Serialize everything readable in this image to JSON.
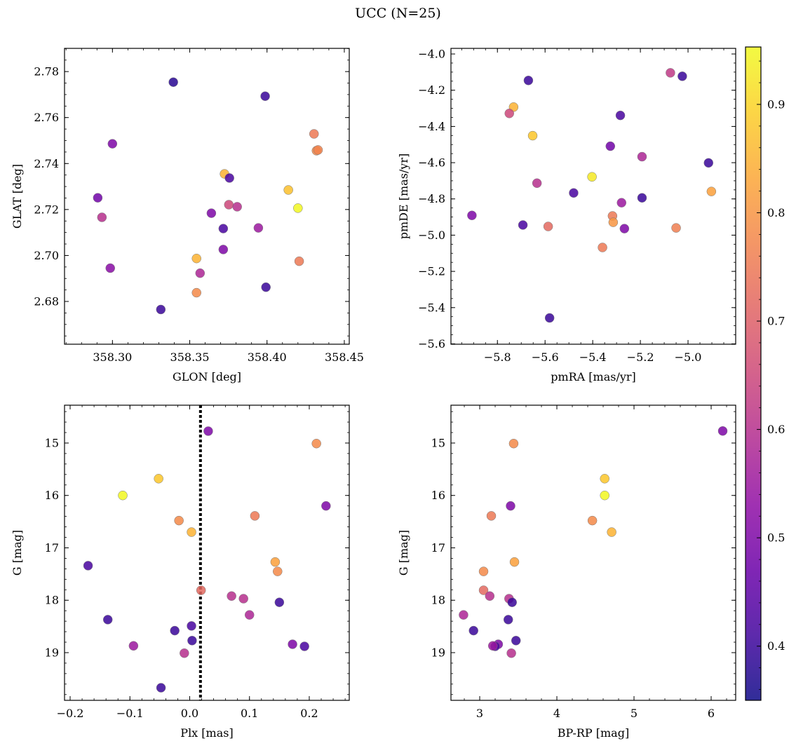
{
  "chart_data": {
    "title": "UCC (N=25)",
    "colorbar": {
      "range": [
        0.35,
        0.953
      ],
      "ticks": [
        0.4,
        0.5,
        0.6,
        0.7,
        0.8,
        0.9
      ],
      "tick_labels": [
        "0.4",
        "0.5",
        "0.6",
        "0.7",
        "0.8",
        "0.9"
      ],
      "colormap": "plasma"
    },
    "panels": [
      {
        "type": "scatter",
        "xlabel": "GLON [deg]",
        "ylabel": "GLAT [deg]",
        "xlim": [
          358.269,
          358.4532
        ],
        "ylim": [
          2.6614,
          2.7901
        ],
        "y_inverted": false,
        "xticks": [
          358.3,
          358.35,
          358.4,
          358.45
        ],
        "xtick_labels": [
          "358.30",
          "358.35",
          "358.40",
          "358.45"
        ],
        "xminor": 0.01,
        "yticks": [
          2.68,
          2.7,
          2.72,
          2.74,
          2.76,
          2.78
        ],
        "ytick_labels": [
          "2.68",
          "2.70",
          "2.72",
          "2.74",
          "2.76",
          "2.78"
        ],
        "yminor": 0.005,
        "points": [
          [
            358.3394,
            2.7754,
            0.38
          ],
          [
            358.3988,
            2.7693,
            0.4
          ],
          [
            358.3,
            2.7486,
            0.5
          ],
          [
            358.4304,
            2.7529,
            0.75
          ],
          [
            358.432,
            2.7456,
            0.78
          ],
          [
            358.433,
            2.7459,
            0.77
          ],
          [
            358.3725,
            2.7355,
            0.85
          ],
          [
            358.3757,
            2.7337,
            0.42
          ],
          [
            358.4138,
            2.7285,
            0.87
          ],
          [
            358.2905,
            2.7251,
            0.48
          ],
          [
            358.42,
            2.7206,
            0.95
          ],
          [
            358.2932,
            2.7166,
            0.6
          ],
          [
            358.3753,
            2.7221,
            0.65
          ],
          [
            358.3807,
            2.7212,
            0.6
          ],
          [
            358.364,
            2.7184,
            0.5
          ],
          [
            358.3717,
            2.7117,
            0.42
          ],
          [
            358.3944,
            2.712,
            0.55
          ],
          [
            358.3717,
            2.7026,
            0.5
          ],
          [
            358.3544,
            2.6987,
            0.85
          ],
          [
            358.4208,
            2.6975,
            0.75
          ],
          [
            358.2986,
            2.6945,
            0.52
          ],
          [
            358.3567,
            2.6923,
            0.58
          ],
          [
            358.3993,
            2.6862,
            0.4
          ],
          [
            358.3544,
            2.6838,
            0.78
          ],
          [
            358.3313,
            2.6765,
            0.4
          ]
        ]
      },
      {
        "type": "scatter",
        "xlabel": "pmRA [mas/yr]",
        "ylabel": "pmDE [mas/yr]",
        "xlim": [
          -5.995,
          -4.8
        ],
        "ylim": [
          -5.602,
          -3.969
        ],
        "y_inverted": false,
        "xticks": [
          -5.8,
          -5.6,
          -5.4,
          -5.2,
          -5.0
        ],
        "xtick_labels": [
          "−5.8",
          "−5.6",
          "−5.4",
          "−5.2",
          "−5.0"
        ],
        "xminor": 0.05,
        "yticks": [
          -5.6,
          -5.4,
          -5.2,
          -5.0,
          -4.8,
          -4.6,
          -4.4,
          -4.2,
          -4.0
        ],
        "ytick_labels": [
          "−5.6",
          "−5.4",
          "−5.2",
          "−5.0",
          "−4.8",
          "−4.6",
          "−4.4",
          "−4.2",
          "−4.0"
        ],
        "yminor": 0.05,
        "points": [
          [
            -5.074,
            -4.104,
            0.62
          ],
          [
            -5.024,
            -4.123,
            0.4
          ],
          [
            -5.67,
            -4.146,
            0.4
          ],
          [
            -5.732,
            -4.293,
            0.85
          ],
          [
            -5.75,
            -4.328,
            0.65
          ],
          [
            -5.284,
            -4.339,
            0.42
          ],
          [
            -5.652,
            -4.451,
            0.88
          ],
          [
            -5.326,
            -4.509,
            0.48
          ],
          [
            -5.193,
            -4.567,
            0.58
          ],
          [
            -4.914,
            -4.601,
            0.4
          ],
          [
            -5.403,
            -4.678,
            0.93
          ],
          [
            -5.634,
            -4.713,
            0.6
          ],
          [
            -4.902,
            -4.759,
            0.82
          ],
          [
            -5.48,
            -4.767,
            0.42
          ],
          [
            -5.279,
            -4.821,
            0.55
          ],
          [
            -5.907,
            -4.891,
            0.5
          ],
          [
            -5.193,
            -4.794,
            0.4
          ],
          [
            -5.317,
            -4.894,
            0.75
          ],
          [
            -5.314,
            -4.929,
            0.8
          ],
          [
            -5.693,
            -4.944,
            0.42
          ],
          [
            -5.587,
            -4.952,
            0.72
          ],
          [
            -5.267,
            -4.964,
            0.5
          ],
          [
            -5.05,
            -4.96,
            0.76
          ],
          [
            -5.359,
            -5.068,
            0.75
          ],
          [
            -5.581,
            -5.457,
            0.4
          ]
        ]
      },
      {
        "type": "scatter",
        "xlabel": "Plx [mas]",
        "ylabel": "G [mag]",
        "xlim": [
          -0.2094,
          0.2669
        ],
        "ylim": [
          14.278,
          19.91
        ],
        "y_inverted": true,
        "xticks": [
          -0.2,
          -0.1,
          0.0,
          0.1,
          0.2
        ],
        "xtick_labels": [
          "−0.2",
          "−0.1",
          "0.0",
          "0.1",
          "0.2"
        ],
        "xminor": 0.02,
        "yticks": [
          15,
          16,
          17,
          18,
          19
        ],
        "ytick_labels": [
          "15",
          "16",
          "17",
          "18",
          "19"
        ],
        "yminor": 0.2,
        "vline": 0.018,
        "points": [
          [
            0.031,
            14.773,
            0.5
          ],
          [
            0.212,
            15.01,
            0.78
          ],
          [
            -0.052,
            15.68,
            0.88
          ],
          [
            -0.112,
            16.0,
            0.95
          ],
          [
            0.228,
            16.2,
            0.5
          ],
          [
            -0.018,
            16.48,
            0.78
          ],
          [
            0.003,
            16.7,
            0.85
          ],
          [
            0.109,
            16.39,
            0.75
          ],
          [
            0.143,
            17.27,
            0.82
          ],
          [
            0.147,
            17.45,
            0.78
          ],
          [
            -0.17,
            17.34,
            0.42
          ],
          [
            0.019,
            17.81,
            0.72
          ],
          [
            0.07,
            17.92,
            0.6
          ],
          [
            0.09,
            17.97,
            0.6
          ],
          [
            0.15,
            18.04,
            0.4
          ],
          [
            0.1,
            18.28,
            0.58
          ],
          [
            -0.137,
            18.37,
            0.4
          ],
          [
            0.003,
            18.49,
            0.42
          ],
          [
            -0.025,
            18.58,
            0.4
          ],
          [
            0.004,
            18.77,
            0.4
          ],
          [
            -0.094,
            18.87,
            0.55
          ],
          [
            0.172,
            18.84,
            0.5
          ],
          [
            0.192,
            18.88,
            0.42
          ],
          [
            -0.009,
            19.01,
            0.6
          ],
          [
            -0.048,
            19.67,
            0.4
          ]
        ]
      },
      {
        "type": "scatter",
        "xlabel": "BP-RP [mag]",
        "ylabel": "G [mag]",
        "xlim": [
          2.627,
          6.318
        ],
        "ylim": [
          14.278,
          19.91
        ],
        "y_inverted": true,
        "xticks": [
          3,
          4,
          5,
          6
        ],
        "xtick_labels": [
          "3",
          "4",
          "5",
          "6"
        ],
        "xminor": 0.2,
        "yticks": [
          15,
          16,
          17,
          18,
          19
        ],
        "ytick_labels": [
          "15",
          "16",
          "17",
          "18",
          "19"
        ],
        "yminor": 0.2,
        "points": [
          [
            6.15,
            14.77,
            0.5
          ],
          [
            3.44,
            15.01,
            0.78
          ],
          [
            4.62,
            15.68,
            0.88
          ],
          [
            4.62,
            16.0,
            0.95
          ],
          [
            3.4,
            16.2,
            0.5
          ],
          [
            3.15,
            16.39,
            0.75
          ],
          [
            4.46,
            16.48,
            0.78
          ],
          [
            4.71,
            16.7,
            0.85
          ],
          [
            3.45,
            17.27,
            0.82
          ],
          [
            3.05,
            17.45,
            0.78
          ],
          [
            3.05,
            17.81,
            0.72
          ],
          [
            3.13,
            17.92,
            0.6
          ],
          [
            3.38,
            17.97,
            0.6
          ],
          [
            3.42,
            18.04,
            0.4
          ],
          [
            2.79,
            18.28,
            0.58
          ],
          [
            3.37,
            18.37,
            0.4
          ],
          [
            2.92,
            18.58,
            0.4
          ],
          [
            3.47,
            18.77,
            0.4
          ],
          [
            3.24,
            18.84,
            0.5
          ],
          [
            3.2,
            18.88,
            0.42
          ],
          [
            3.17,
            18.87,
            0.55
          ],
          [
            3.41,
            19.01,
            0.6
          ]
        ]
      }
    ]
  }
}
